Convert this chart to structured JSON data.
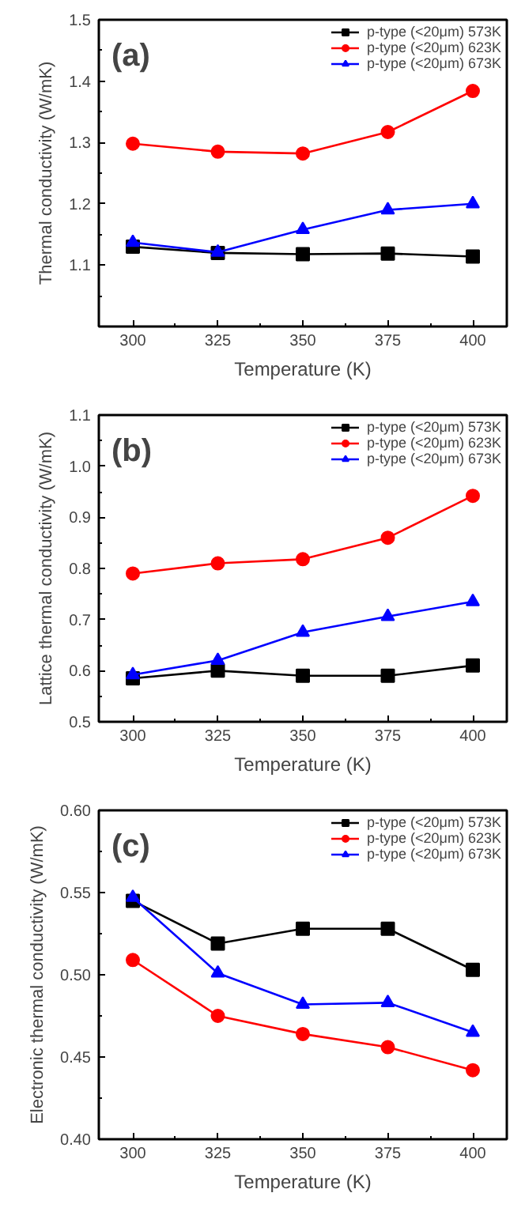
{
  "chart_data": [
    {
      "type": "line",
      "xlabel": "Temperature (K)",
      "ylabel": "Thermal conductivity (W/mK)",
      "annotations": [
        "(a)"
      ],
      "x": [
        300,
        325,
        350,
        375,
        400
      ],
      "xlim": [
        290,
        410
      ],
      "xticks": [
        300,
        {
          "value": 312.5,
          "label": null
        },
        325,
        {
          "value": 337.5,
          "label": null
        },
        350,
        {
          "value": 362.5,
          "label": null
        },
        375,
        {
          "value": 387.5,
          "label": null
        },
        400
      ],
      "ylim": [
        1.0,
        1.5
      ],
      "yticks": [
        {
          "value": 1.0,
          "label": null
        },
        {
          "value": 1.05,
          "label": null
        },
        1.1,
        {
          "value": 1.15,
          "label": null
        },
        1.2,
        {
          "value": 1.25,
          "label": null
        },
        1.3,
        {
          "value": 1.35,
          "label": null
        },
        1.4,
        {
          "value": 1.45,
          "label": null
        },
        1.5
      ],
      "grid": false,
      "legend": "top right",
      "line_style": "solid",
      "series": [
        {
          "name": "p-type (<20μm) 573K",
          "color": "#000000",
          "marker": "square",
          "values": [
            1.13,
            1.12,
            1.118,
            1.119,
            1.114
          ]
        },
        {
          "name": "p-type (<20μm) 623K",
          "color": "#ff0000",
          "marker": "circle",
          "values": [
            1.298,
            1.285,
            1.282,
            1.317,
            1.384
          ]
        },
        {
          "name": "p-type (<20μm) 673K",
          "color": "#0000ff",
          "marker": "triangle",
          "values": [
            1.137,
            1.121,
            1.158,
            1.19,
            1.2
          ]
        }
      ]
    },
    {
      "type": "line",
      "xlabel": "Temperature (K)",
      "ylabel": "Lattice thermal conductivity (W/mK)",
      "annotations": [
        "(b)"
      ],
      "x": [
        300,
        325,
        350,
        375,
        400
      ],
      "xlim": [
        290,
        410
      ],
      "xticks": [
        300,
        {
          "value": 312.5,
          "label": null
        },
        325,
        {
          "value": 337.5,
          "label": null
        },
        350,
        {
          "value": 362.5,
          "label": null
        },
        375,
        {
          "value": 387.5,
          "label": null
        },
        400
      ],
      "ylim": [
        0.5,
        1.1
      ],
      "yticks": [
        0.5,
        {
          "value": 0.55,
          "label": null
        },
        0.6,
        {
          "value": 0.65,
          "label": null
        },
        0.7,
        {
          "value": 0.75,
          "label": null
        },
        0.8,
        {
          "value": 0.85,
          "label": null
        },
        0.9,
        {
          "value": 0.95,
          "label": null
        },
        {
          "value": 1.0,
          "label": "1.0"
        },
        {
          "value": 1.05,
          "label": null
        },
        1.1
      ],
      "grid": false,
      "legend": "top right",
      "line_style": "solid",
      "series": [
        {
          "name": "p-type (<20μm) 573K",
          "color": "#000000",
          "marker": "square",
          "values": [
            0.585,
            0.6,
            0.59,
            0.59,
            0.61
          ]
        },
        {
          "name": "p-type (<20μm) 623K",
          "color": "#ff0000",
          "marker": "circle",
          "values": [
            0.79,
            0.81,
            0.818,
            0.86,
            0.942
          ]
        },
        {
          "name": "p-type (<20μm) 673K",
          "color": "#0000ff",
          "marker": "triangle",
          "values": [
            0.592,
            0.62,
            0.675,
            0.706,
            0.735
          ]
        }
      ]
    },
    {
      "type": "line",
      "xlabel": "Temperature (K)",
      "ylabel": "Electronic thermal conductivity (W/mK)",
      "annotations": [
        "(c)"
      ],
      "x": [
        300,
        325,
        350,
        375,
        400
      ],
      "xlim": [
        290,
        410
      ],
      "xticks": [
        300,
        {
          "value": 312.5,
          "label": null
        },
        325,
        {
          "value": 337.5,
          "label": null
        },
        350,
        {
          "value": 362.5,
          "label": null
        },
        375,
        {
          "value": 387.5,
          "label": null
        },
        400
      ],
      "ylim": [
        0.4,
        0.6
      ],
      "yticks": [
        {
          "value": 0.4,
          "label": "0.40"
        },
        {
          "value": 0.425,
          "label": null
        },
        0.45,
        {
          "value": 0.475,
          "label": null
        },
        {
          "value": 0.5,
          "label": "0.50"
        },
        {
          "value": 0.525,
          "label": null
        },
        0.55,
        {
          "value": 0.575,
          "label": null
        },
        {
          "value": 0.6,
          "label": "0.60"
        }
      ],
      "grid": false,
      "legend": "top right",
      "line_style": "solid",
      "series": [
        {
          "name": "p-type (<20μm) 573K",
          "color": "#000000",
          "marker": "square",
          "values": [
            0.545,
            0.519,
            0.528,
            0.528,
            0.503
          ]
        },
        {
          "name": "p-type (<20μm) 623K",
          "color": "#ff0000",
          "marker": "circle",
          "values": [
            0.509,
            0.475,
            0.464,
            0.456,
            0.442
          ]
        },
        {
          "name": "p-type (<20μm) 673K",
          "color": "#0000ff",
          "marker": "triangle",
          "values": [
            0.547,
            0.501,
            0.482,
            0.483,
            0.465
          ]
        }
      ]
    }
  ]
}
